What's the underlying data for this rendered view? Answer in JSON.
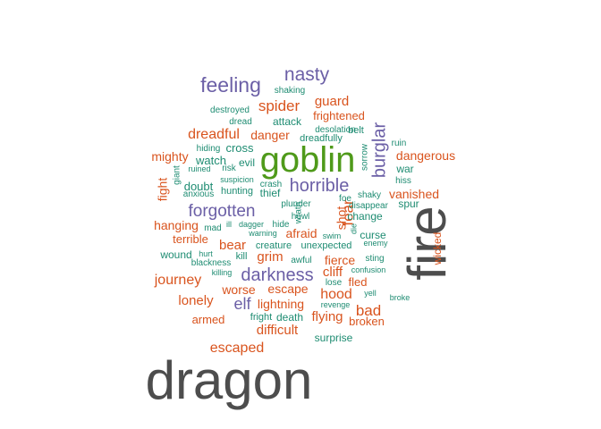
{
  "colors": {
    "gray": "#4d4d4d",
    "green": "#4f9a1a",
    "purple": "#6b5fa6",
    "orange": "#d9541e",
    "teal": "#1e8c72"
  },
  "words": [
    {
      "text": "dragon",
      "color": "gray"
    },
    {
      "text": "fire",
      "color": "gray"
    },
    {
      "text": "goblin",
      "color": "green"
    },
    {
      "text": "nasty",
      "color": "purple"
    },
    {
      "text": "feeling",
      "color": "purple"
    },
    {
      "text": "shaking",
      "color": "teal"
    },
    {
      "text": "spider",
      "color": "orange"
    },
    {
      "text": "guard",
      "color": "orange"
    },
    {
      "text": "destroyed",
      "color": "teal"
    },
    {
      "text": "dread",
      "color": "teal"
    },
    {
      "text": "attack",
      "color": "teal"
    },
    {
      "text": "frightened",
      "color": "orange"
    },
    {
      "text": "burglar",
      "color": "purple"
    },
    {
      "text": "dreadful",
      "color": "orange"
    },
    {
      "text": "danger",
      "color": "orange"
    },
    {
      "text": "desolation",
      "color": "teal"
    },
    {
      "text": "belt",
      "color": "teal"
    },
    {
      "text": "dreadfully",
      "color": "teal"
    },
    {
      "text": "ruin",
      "color": "teal"
    },
    {
      "text": "hiding",
      "color": "teal"
    },
    {
      "text": "cross",
      "color": "teal"
    },
    {
      "text": "sorrow",
      "color": "teal"
    },
    {
      "text": "mighty",
      "color": "orange"
    },
    {
      "text": "watch",
      "color": "teal"
    },
    {
      "text": "evil",
      "color": "teal"
    },
    {
      "text": "dangerous",
      "color": "orange"
    },
    {
      "text": "giant",
      "color": "teal"
    },
    {
      "text": "ruined",
      "color": "teal"
    },
    {
      "text": "risk",
      "color": "teal"
    },
    {
      "text": "war",
      "color": "teal"
    },
    {
      "text": "hiss",
      "color": "teal"
    },
    {
      "text": "fight",
      "color": "orange"
    },
    {
      "text": "suspicion",
      "color": "teal"
    },
    {
      "text": "crash",
      "color": "teal"
    },
    {
      "text": "horrible",
      "color": "purple"
    },
    {
      "text": "doubt",
      "color": "teal"
    },
    {
      "text": "hunting",
      "color": "teal"
    },
    {
      "text": "thief",
      "color": "teal"
    },
    {
      "text": "anxious",
      "color": "teal"
    },
    {
      "text": "shaky",
      "color": "teal"
    },
    {
      "text": "vanished",
      "color": "orange"
    },
    {
      "text": "fear",
      "color": "orange"
    },
    {
      "text": "foe",
      "color": "teal"
    },
    {
      "text": "disappear",
      "color": "teal"
    },
    {
      "text": "spur",
      "color": "teal"
    },
    {
      "text": "forgotten",
      "color": "purple"
    },
    {
      "text": "wrath",
      "color": "teal"
    },
    {
      "text": "plunder",
      "color": "teal"
    },
    {
      "text": "shot",
      "color": "orange"
    },
    {
      "text": "howl",
      "color": "teal"
    },
    {
      "text": "change",
      "color": "teal"
    },
    {
      "text": "hanging",
      "color": "orange"
    },
    {
      "text": "mad",
      "color": "teal"
    },
    {
      "text": "ill",
      "color": "teal"
    },
    {
      "text": "dagger",
      "color": "teal"
    },
    {
      "text": "hide",
      "color": "teal"
    },
    {
      "text": "die",
      "color": "teal"
    },
    {
      "text": "terrible",
      "color": "orange"
    },
    {
      "text": "warning",
      "color": "teal"
    },
    {
      "text": "afraid",
      "color": "orange"
    },
    {
      "text": "swim",
      "color": "teal"
    },
    {
      "text": "curse",
      "color": "teal"
    },
    {
      "text": "wicked",
      "color": "orange"
    },
    {
      "text": "bear",
      "color": "orange"
    },
    {
      "text": "creature",
      "color": "teal"
    },
    {
      "text": "unexpected",
      "color": "teal"
    },
    {
      "text": "enemy",
      "color": "teal"
    },
    {
      "text": "wound",
      "color": "teal"
    },
    {
      "text": "hurt",
      "color": "teal"
    },
    {
      "text": "kill",
      "color": "teal"
    },
    {
      "text": "grim",
      "color": "orange"
    },
    {
      "text": "awful",
      "color": "teal"
    },
    {
      "text": "fierce",
      "color": "orange"
    },
    {
      "text": "sting",
      "color": "teal"
    },
    {
      "text": "blackness",
      "color": "teal"
    },
    {
      "text": "cliff",
      "color": "orange"
    },
    {
      "text": "confusion",
      "color": "teal"
    },
    {
      "text": "killing",
      "color": "teal"
    },
    {
      "text": "darkness",
      "color": "purple"
    },
    {
      "text": "journey",
      "color": "orange"
    },
    {
      "text": "lose",
      "color": "teal"
    },
    {
      "text": "fled",
      "color": "orange"
    },
    {
      "text": "worse",
      "color": "orange"
    },
    {
      "text": "escape",
      "color": "orange"
    },
    {
      "text": "hood",
      "color": "orange"
    },
    {
      "text": "yell",
      "color": "teal"
    },
    {
      "text": "lonely",
      "color": "orange"
    },
    {
      "text": "broke",
      "color": "teal"
    },
    {
      "text": "elf",
      "color": "purple"
    },
    {
      "text": "lightning",
      "color": "orange"
    },
    {
      "text": "revenge",
      "color": "teal"
    },
    {
      "text": "bad",
      "color": "orange"
    },
    {
      "text": "fright",
      "color": "teal"
    },
    {
      "text": "death",
      "color": "teal"
    },
    {
      "text": "flying",
      "color": "orange"
    },
    {
      "text": "armed",
      "color": "orange"
    },
    {
      "text": "broken",
      "color": "orange"
    },
    {
      "text": "difficult",
      "color": "orange"
    },
    {
      "text": "surprise",
      "color": "teal"
    },
    {
      "text": "escaped",
      "color": "orange"
    }
  ]
}
